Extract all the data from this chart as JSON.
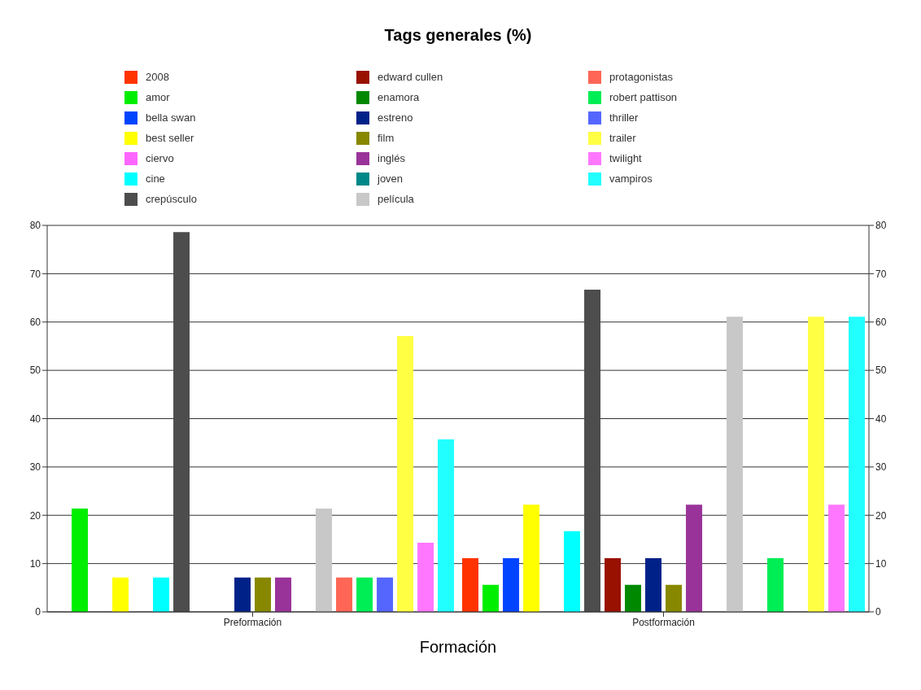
{
  "chart_data": {
    "type": "bar",
    "title": "Tags generales (%)",
    "xlabel": "Formación",
    "categories": [
      "Preformación",
      "Postformación"
    ],
    "series": [
      {
        "name": "2008",
        "color": "#ff3300",
        "values": [
          0,
          11.1
        ]
      },
      {
        "name": "amor",
        "color": "#00ee00",
        "values": [
          21.4,
          5.6
        ]
      },
      {
        "name": "bella swan",
        "color": "#0044ff",
        "values": [
          0,
          11.1
        ]
      },
      {
        "name": "best seller",
        "color": "#ffff00",
        "values": [
          7.1,
          22.2
        ]
      },
      {
        "name": "ciervo",
        "color": "#ff66ff",
        "values": [
          0,
          0
        ]
      },
      {
        "name": "cine",
        "color": "#00ffff",
        "values": [
          7.1,
          16.7
        ]
      },
      {
        "name": "crepúsculo",
        "color": "#4d4d4d",
        "values": [
          78.6,
          66.7
        ]
      },
      {
        "name": "edward cullen",
        "color": "#991100",
        "values": [
          0,
          11.1
        ]
      },
      {
        "name": "enamora",
        "color": "#008800",
        "values": [
          0,
          5.6
        ]
      },
      {
        "name": "estreno",
        "color": "#002288",
        "values": [
          7.1,
          11.1
        ]
      },
      {
        "name": "film",
        "color": "#888800",
        "values": [
          7.1,
          5.6
        ]
      },
      {
        "name": "inglés",
        "color": "#993399",
        "values": [
          7.1,
          22.2
        ]
      },
      {
        "name": "joven",
        "color": "#008888",
        "values": [
          0,
          0
        ]
      },
      {
        "name": "película",
        "color": "#c8c8c8",
        "values": [
          21.4,
          61.1
        ]
      },
      {
        "name": "protagonistas",
        "color": "#ff6655",
        "values": [
          7.1,
          0
        ]
      },
      {
        "name": "robert pattison",
        "color": "#00ee55",
        "values": [
          7.1,
          11.1
        ]
      },
      {
        "name": "thriller",
        "color": "#5566ff",
        "values": [
          7.1,
          0
        ]
      },
      {
        "name": "trailer",
        "color": "#ffff44",
        "values": [
          57.1,
          61.1
        ]
      },
      {
        "name": "twilight",
        "color": "#ff77ff",
        "values": [
          14.3,
          22.2
        ]
      },
      {
        "name": "vampiros",
        "color": "#22ffff",
        "values": [
          35.7,
          61.1
        ]
      }
    ],
    "ylim": [
      0,
      80
    ],
    "yticks": [
      0,
      10,
      20,
      30,
      40,
      50,
      60,
      70,
      80
    ],
    "y2lim": [
      0,
      80
    ],
    "y2ticks": [
      0,
      10,
      20,
      30,
      40,
      50,
      60,
      70,
      80
    ],
    "grid": "y",
    "legend": "top"
  }
}
